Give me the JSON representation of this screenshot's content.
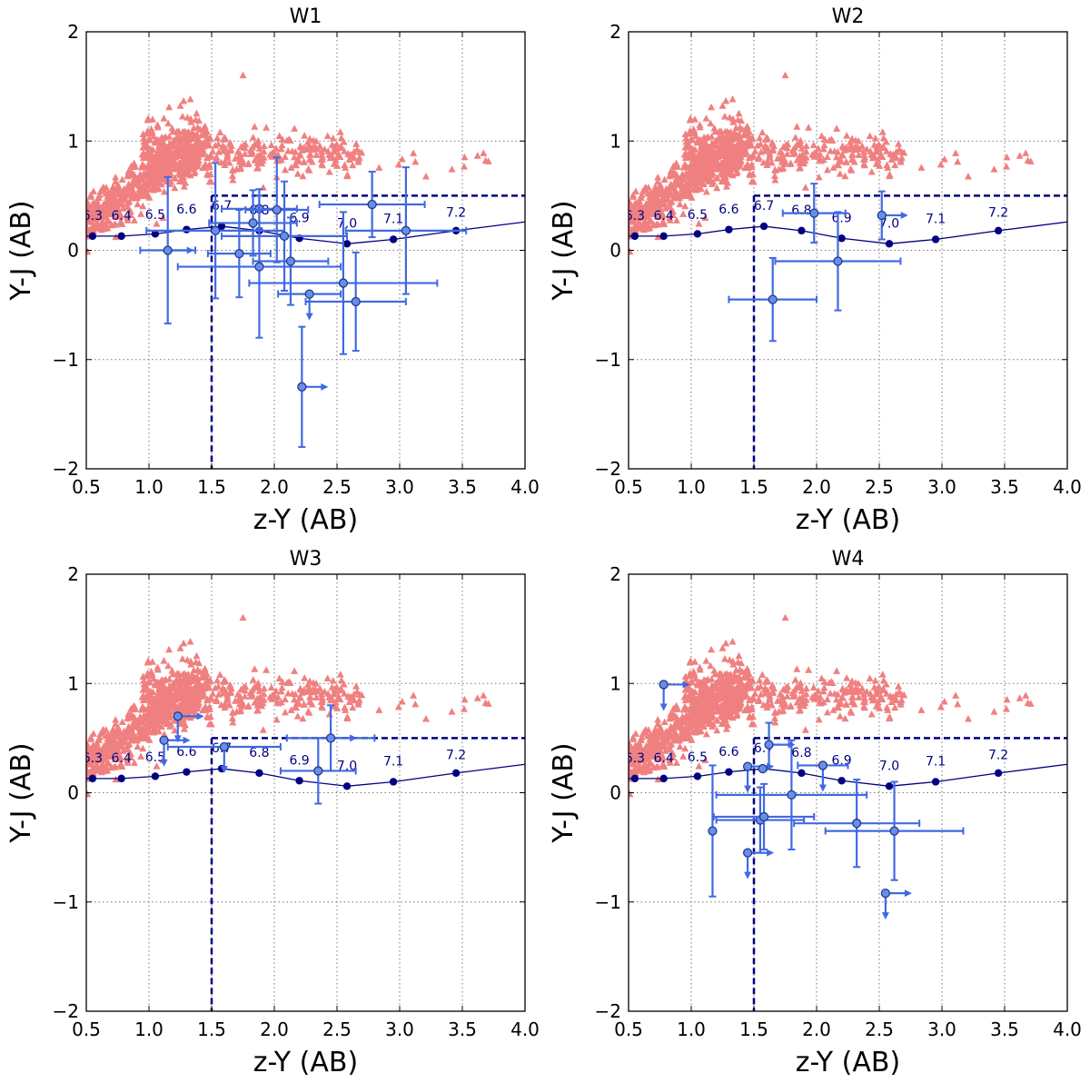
{
  "colors": {
    "contaminant": "#f08080",
    "candidate": "#4169e1",
    "candidate_face": "#6a8de6",
    "track": "#000080",
    "cut": "#000080",
    "grid": "#777777"
  },
  "chart_data": [
    {
      "type": "scatter",
      "title": "W1",
      "xlabel": "z-Y (AB)",
      "ylabel": "Y-J (AB)",
      "xlim": [
        0.5,
        4.0
      ],
      "ylim": [
        -2,
        2
      ],
      "xticks": [
        0.5,
        1.0,
        1.5,
        2.0,
        2.5,
        3.0,
        3.5,
        4.0
      ],
      "xtick_labels": [
        "0.5",
        "1.0",
        "1.5",
        "2.0",
        "2.5",
        "3.0",
        "3.5",
        "4.0"
      ],
      "yticks": [
        -2,
        -1,
        0,
        1,
        2
      ],
      "ytick_labels": [
        "−2",
        "−1",
        "0",
        "1",
        "2"
      ],
      "grid": true,
      "selection_box": {
        "zY_min": 1.5,
        "YJ_max": 0.5
      },
      "track": {
        "z": [
          "6.3",
          "6.4",
          "6.5",
          "6.6",
          "6.7",
          "6.8",
          "6.9",
          "7.0",
          "7.1",
          "7.2"
        ],
        "x": [
          0.55,
          0.78,
          1.05,
          1.3,
          1.58,
          1.88,
          2.2,
          2.58,
          2.95,
          3.45
        ],
        "y": [
          0.13,
          0.13,
          0.15,
          0.19,
          0.22,
          0.18,
          0.11,
          0.06,
          0.1,
          0.18
        ],
        "label_y": [
          0.32,
          0.32,
          0.33,
          0.38,
          0.41,
          0.37,
          0.3,
          0.25,
          0.29,
          0.35
        ]
      },
      "candidates": [
        {
          "x": 1.15,
          "y": 0.0,
          "xerr": 0.22,
          "yerr": 0.67,
          "arrow_x": true,
          "arrow_y": false
        },
        {
          "x": 1.53,
          "y": 0.18,
          "xerr": 0.55,
          "yerr": 0.62,
          "arrow_x": false,
          "arrow_y": false
        },
        {
          "x": 1.72,
          "y": -0.03,
          "xerr": 0.25,
          "yerr": 0.4,
          "arrow_x": false,
          "arrow_y": false
        },
        {
          "x": 1.83,
          "y": 0.25,
          "xerr": 0.35,
          "yerr": 0.3,
          "arrow_x": false,
          "arrow_y": false
        },
        {
          "x": 1.88,
          "y": 0.38,
          "xerr": 0.3,
          "yerr": 0.18,
          "arrow_x": false,
          "arrow_y": false
        },
        {
          "x": 1.88,
          "y": -0.15,
          "xerr": 0.65,
          "yerr": 0.65,
          "arrow_x": false,
          "arrow_y": false
        },
        {
          "x": 2.02,
          "y": 0.37,
          "xerr": 0.25,
          "yerr": 0.48,
          "arrow_x": false,
          "arrow_y": false
        },
        {
          "x": 2.08,
          "y": 0.13,
          "xerr": 0.5,
          "yerr": 0.5,
          "arrow_x": false,
          "arrow_y": false
        },
        {
          "x": 2.13,
          "y": -0.1,
          "xerr": 0.3,
          "yerr": 0.4,
          "arrow_x": false,
          "arrow_y": false
        },
        {
          "x": 2.28,
          "y": -0.4,
          "xerr": 0.25,
          "yerr": 0.0,
          "arrow_x": false,
          "arrow_y": true
        },
        {
          "x": 2.55,
          "y": -0.3,
          "xerr": 0.75,
          "yerr": 0.65,
          "arrow_x": false,
          "arrow_y": false
        },
        {
          "x": 2.65,
          "y": -0.47,
          "xerr": 0.4,
          "yerr": 0.45,
          "arrow_x": false,
          "arrow_y": false
        },
        {
          "x": 2.78,
          "y": 0.42,
          "xerr": 0.42,
          "yerr": 0.3,
          "arrow_x": false,
          "arrow_y": false
        },
        {
          "x": 3.05,
          "y": 0.18,
          "xerr": 0.48,
          "yerr": 0.58,
          "arrow_x": false,
          "arrow_y": false
        },
        {
          "x": 2.22,
          "y": -1.25,
          "xerr": 0.0,
          "yerr": 0.55,
          "arrow_x": true,
          "arrow_y": false
        }
      ]
    },
    {
      "type": "scatter",
      "title": "W2",
      "xlabel": "z-Y (AB)",
      "ylabel": "Y-J (AB)",
      "xlim": [
        0.5,
        4.0
      ],
      "ylim": [
        -2,
        2
      ],
      "xticks": [
        0.5,
        1.0,
        1.5,
        2.0,
        2.5,
        3.0,
        3.5,
        4.0
      ],
      "xtick_labels": [
        "0.5",
        "1.0",
        "1.5",
        "2.0",
        "2.5",
        "3.0",
        "3.5",
        "4.0"
      ],
      "yticks": [
        -2,
        -1,
        0,
        1,
        2
      ],
      "ytick_labels": [
        "−2",
        "−1",
        "0",
        "1",
        "2"
      ],
      "grid": true,
      "selection_box": {
        "zY_min": 1.5,
        "YJ_max": 0.5
      },
      "track": {
        "z": [
          "6.3",
          "6.4",
          "6.5",
          "6.6",
          "6.7",
          "6.8",
          "6.9",
          "7.0",
          "7.1",
          "7.2"
        ],
        "x": [
          0.55,
          0.78,
          1.05,
          1.3,
          1.58,
          1.88,
          2.2,
          2.58,
          2.95,
          3.45
        ],
        "y": [
          0.13,
          0.13,
          0.15,
          0.19,
          0.22,
          0.18,
          0.11,
          0.06,
          0.1,
          0.18
        ],
        "label_y": [
          0.32,
          0.32,
          0.33,
          0.38,
          0.41,
          0.37,
          0.3,
          0.25,
          0.29,
          0.35
        ]
      },
      "candidates": [
        {
          "x": 1.98,
          "y": 0.34,
          "xerr": 0.25,
          "yerr": 0.27,
          "arrow_x": false,
          "arrow_y": false
        },
        {
          "x": 2.52,
          "y": 0.32,
          "xerr": 0.0,
          "yerr": 0.22,
          "arrow_x": true,
          "arrow_y": false
        },
        {
          "x": 2.17,
          "y": -0.1,
          "xerr": 0.5,
          "yerr": 0.45,
          "arrow_x": false,
          "arrow_y": false
        },
        {
          "x": 1.65,
          "y": -0.45,
          "xerr": 0.35,
          "yerr": 0.38,
          "arrow_x": false,
          "arrow_y": false
        }
      ]
    },
    {
      "type": "scatter",
      "title": "W3",
      "xlabel": "z-Y (AB)",
      "ylabel": "Y-J (AB)",
      "xlim": [
        0.5,
        4.0
      ],
      "ylim": [
        -2,
        2
      ],
      "xticks": [
        0.5,
        1.0,
        1.5,
        2.0,
        2.5,
        3.0,
        3.5,
        4.0
      ],
      "xtick_labels": [
        "0.5",
        "1.0",
        "1.5",
        "2.0",
        "2.5",
        "3.0",
        "3.5",
        "4.0"
      ],
      "yticks": [
        -2,
        -1,
        0,
        1,
        2
      ],
      "ytick_labels": [
        "−2",
        "−1",
        "0",
        "1",
        "2"
      ],
      "grid": true,
      "selection_box": {
        "zY_min": 1.5,
        "YJ_max": 0.5
      },
      "track": {
        "z": [
          "6.3",
          "6.4",
          "6.5",
          "6.6",
          "6.7",
          "6.8",
          "6.9",
          "7.0",
          "7.1",
          "7.2"
        ],
        "x": [
          0.55,
          0.78,
          1.05,
          1.3,
          1.58,
          1.88,
          2.2,
          2.58,
          2.95,
          3.45
        ],
        "y": [
          0.13,
          0.13,
          0.15,
          0.19,
          0.22,
          0.18,
          0.11,
          0.06,
          0.1,
          0.18
        ],
        "label_y": [
          0.32,
          0.32,
          0.33,
          0.38,
          0.41,
          0.37,
          0.3,
          0.25,
          0.29,
          0.35
        ]
      },
      "candidates": [
        {
          "x": 1.23,
          "y": 0.7,
          "xerr": 0.0,
          "yerr": 0.0,
          "arrow_x": true,
          "arrow_y": true
        },
        {
          "x": 1.12,
          "y": 0.48,
          "xerr": 0.0,
          "yerr": 0.0,
          "arrow_x": true,
          "arrow_y": true
        },
        {
          "x": 1.6,
          "y": 0.42,
          "xerr": 0.45,
          "yerr": 0.0,
          "arrow_x": false,
          "arrow_y": true
        },
        {
          "x": 2.45,
          "y": 0.5,
          "xerr": 0.35,
          "yerr": 0.3,
          "arrow_x": true,
          "arrow_y": false
        },
        {
          "x": 2.35,
          "y": 0.2,
          "xerr": 0.3,
          "yerr": 0.3,
          "arrow_x": false,
          "arrow_y": false
        }
      ]
    },
    {
      "type": "scatter",
      "title": "W4",
      "xlabel": "z-Y (AB)",
      "ylabel": "Y-J (AB)",
      "xlim": [
        0.5,
        4.0
      ],
      "ylim": [
        -2,
        2
      ],
      "xticks": [
        0.5,
        1.0,
        1.5,
        2.0,
        2.5,
        3.0,
        3.5,
        4.0
      ],
      "xtick_labels": [
        "0.5",
        "1.0",
        "1.5",
        "2.0",
        "2.5",
        "3.0",
        "3.5",
        "4.0"
      ],
      "yticks": [
        -2,
        -1,
        0,
        1,
        2
      ],
      "ytick_labels": [
        "−2",
        "−1",
        "0",
        "1",
        "2"
      ],
      "grid": true,
      "selection_box": {
        "zY_min": 1.5,
        "YJ_max": 0.5
      },
      "track": {
        "z": [
          "6.3",
          "6.4",
          "6.5",
          "6.6",
          "6.7",
          "6.8",
          "6.9",
          "7.0",
          "7.1",
          "7.2"
        ],
        "x": [
          0.55,
          0.78,
          1.05,
          1.3,
          1.58,
          1.88,
          2.2,
          2.58,
          2.95,
          3.45
        ],
        "y": [
          0.13,
          0.13,
          0.15,
          0.19,
          0.22,
          0.18,
          0.11,
          0.06,
          0.1,
          0.18
        ],
        "label_y": [
          0.32,
          0.32,
          0.33,
          0.38,
          0.41,
          0.37,
          0.3,
          0.25,
          0.29,
          0.35
        ]
      },
      "candidates": [
        {
          "x": 0.78,
          "y": 0.99,
          "xerr": 0.0,
          "yerr": 0.0,
          "arrow_x": true,
          "arrow_y": true
        },
        {
          "x": 1.45,
          "y": 0.24,
          "xerr": 0.0,
          "yerr": 0.0,
          "arrow_x": true,
          "arrow_y": true
        },
        {
          "x": 1.62,
          "y": 0.44,
          "xerr": 0.0,
          "yerr": 0.2,
          "arrow_x": true,
          "arrow_y": false
        },
        {
          "x": 2.05,
          "y": 0.25,
          "xerr": 0.2,
          "yerr": 0.0,
          "arrow_x": false,
          "arrow_y": true
        },
        {
          "x": 1.57,
          "y": 0.22,
          "xerr": 0.0,
          "yerr": 0.0,
          "arrow_x": false,
          "arrow_y": false
        },
        {
          "x": 1.8,
          "y": -0.02,
          "xerr": 0.6,
          "yerr": 0.5,
          "arrow_x": false,
          "arrow_y": false
        },
        {
          "x": 1.17,
          "y": -0.35,
          "xerr": 0.0,
          "yerr": 0.6,
          "arrow_x": false,
          "arrow_y": false
        },
        {
          "x": 1.55,
          "y": -0.25,
          "xerr": 0.35,
          "yerr": 0.3,
          "arrow_x": false,
          "arrow_y": false
        },
        {
          "x": 1.58,
          "y": -0.22,
          "xerr": 0.4,
          "yerr": 0.3,
          "arrow_x": false,
          "arrow_y": false
        },
        {
          "x": 2.32,
          "y": -0.28,
          "xerr": 0.5,
          "yerr": 0.4,
          "arrow_x": false,
          "arrow_y": false
        },
        {
          "x": 2.62,
          "y": -0.35,
          "xerr": 0.55,
          "yerr": 0.45,
          "arrow_x": false,
          "arrow_y": false
        },
        {
          "x": 1.45,
          "y": -0.55,
          "xerr": 0.0,
          "yerr": 0.0,
          "arrow_x": true,
          "arrow_y": true
        },
        {
          "x": 2.55,
          "y": -0.92,
          "xerr": 0.0,
          "yerr": 0.0,
          "arrow_x": true,
          "arrow_y": true
        }
      ]
    }
  ]
}
